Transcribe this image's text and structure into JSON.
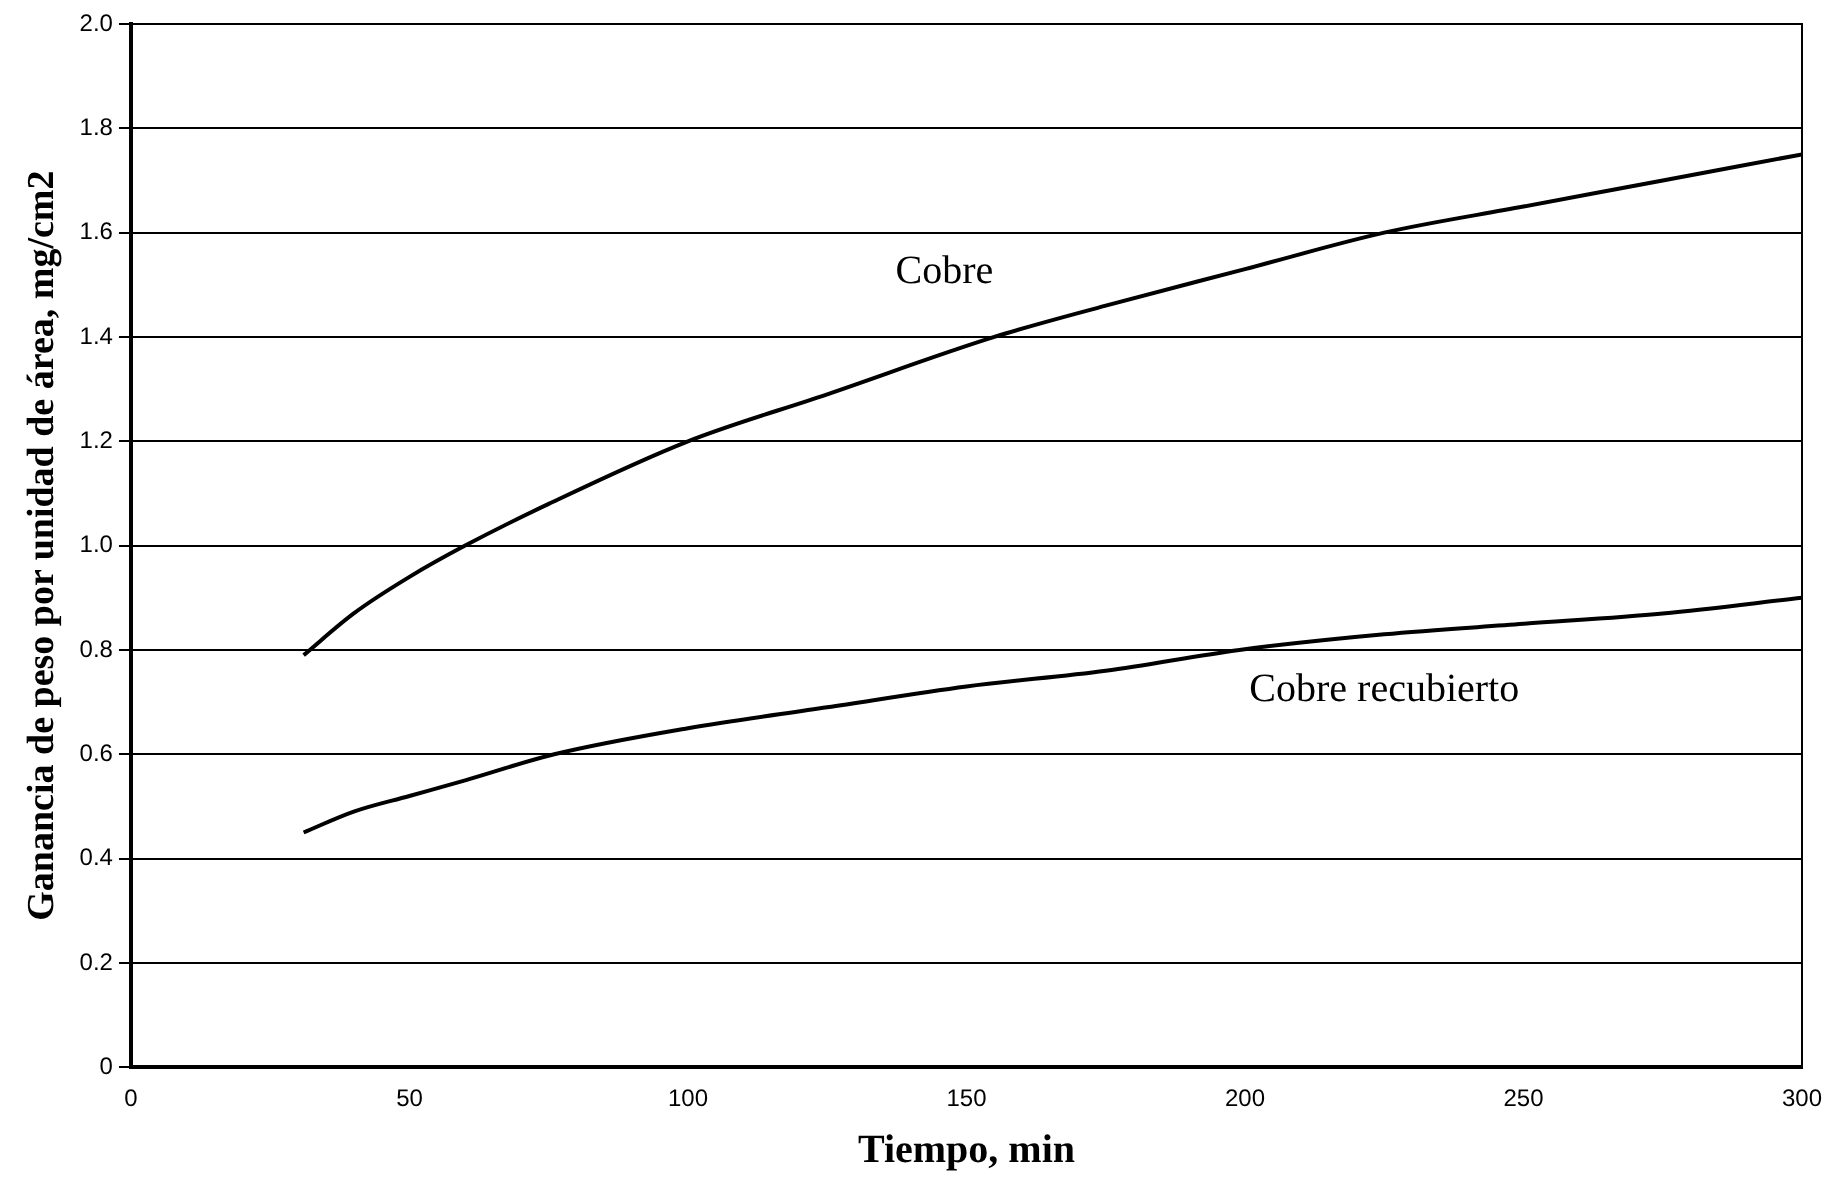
{
  "chart_data": {
    "type": "line",
    "xlabel": "Tiempo, min",
    "ylabel": "Ganancia de peso por unidad de área, mg/cm2",
    "xlim": [
      0,
      300
    ],
    "xticks": [
      0,
      50,
      100,
      150,
      200,
      250,
      300
    ],
    "ylim": [
      0,
      2.0
    ],
    "yticks": [
      {
        "value": 0,
        "label": "0"
      },
      {
        "value": 0.2,
        "label": "0.2"
      },
      {
        "value": 0.4,
        "label": "0.4"
      },
      {
        "value": 0.6,
        "label": "0.6"
      },
      {
        "value": 0.8,
        "label": "0.8"
      },
      {
        "value": 1.0,
        "label": "1.0"
      },
      {
        "value": 1.2,
        "label": "1.2"
      },
      {
        "value": 1.4,
        "label": "1.4"
      },
      {
        "value": 1.6,
        "label": "1.6"
      },
      {
        "value": 1.8,
        "label": "1.8"
      },
      {
        "value": 2.0,
        "label": "2.0"
      }
    ],
    "grid": "y",
    "legend": false,
    "marker": "none",
    "line_style": "solid",
    "series": [
      {
        "name": "Cobre",
        "color": "#000000",
        "x": [
          31,
          40,
          50,
          60,
          75,
          100,
          125,
          155,
          175,
          200,
          225,
          250,
          275,
          300
        ],
        "values": [
          0.79,
          0.87,
          0.94,
          1.0,
          1.08,
          1.2,
          1.29,
          1.4,
          1.46,
          1.53,
          1.6,
          1.65,
          1.7,
          1.75
        ]
      },
      {
        "name": "Cobre recubierto",
        "color": "#000000",
        "x": [
          31,
          40,
          50,
          60,
          76,
          100,
          125,
          150,
          175,
          199,
          225,
          250,
          275,
          300
        ],
        "values": [
          0.45,
          0.49,
          0.52,
          0.55,
          0.6,
          0.65,
          0.69,
          0.73,
          0.76,
          0.8,
          0.83,
          0.85,
          0.87,
          0.9
        ]
      }
    ]
  }
}
